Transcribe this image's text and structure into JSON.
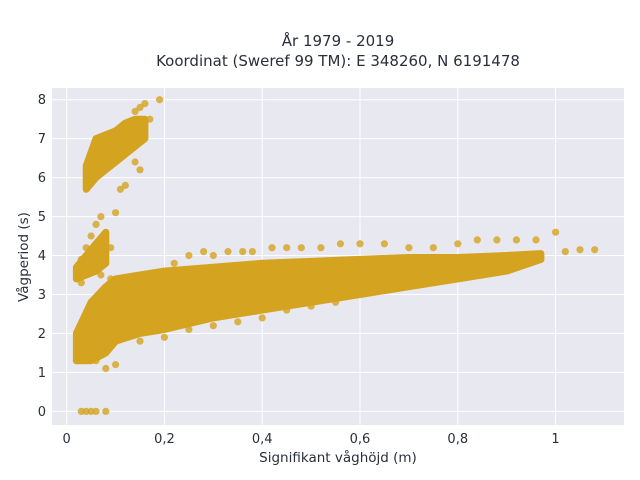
{
  "chart_data": {
    "type": "scatter",
    "title_lines": [
      "År 1979 - 2019",
      "Koordinat (Sweref 99 TM): E 348260, N 6191478"
    ],
    "xlabel": "Signifikant våghöjd (m)",
    "ylabel": "Vågperiod (s)",
    "xlim": [
      -0.03,
      1.14
    ],
    "ylim": [
      -0.35,
      8.3
    ],
    "x_ticks": [
      0,
      0.2,
      0.4,
      0.6,
      0.8,
      1
    ],
    "x_tick_labels": [
      "0",
      "0,2",
      "0,4",
      "0,6",
      "0,8",
      "1"
    ],
    "y_ticks": [
      0,
      1,
      2,
      3,
      4,
      5,
      6,
      7,
      8
    ],
    "y_tick_labels": [
      "0",
      "1",
      "2",
      "3",
      "4",
      "5",
      "6",
      "7",
      "8"
    ],
    "grid": true,
    "legend": "none",
    "colors": {
      "marker": "#d4a31f",
      "plot_bg": "#e8e8f0",
      "grid": "#ffffff"
    },
    "points": [
      [
        0.03,
        0
      ],
      [
        0.04,
        0
      ],
      [
        0.05,
        0
      ],
      [
        0.06,
        0
      ],
      [
        0.08,
        0
      ],
      [
        0.02,
        1.3
      ],
      [
        0.02,
        1.6
      ],
      [
        0.03,
        1.9
      ],
      [
        0.03,
        3.3
      ],
      [
        0.02,
        3.6
      ],
      [
        0.03,
        3.9
      ],
      [
        0.04,
        4.2
      ],
      [
        0.05,
        4.5
      ],
      [
        0.06,
        4.8
      ],
      [
        0.07,
        5.0
      ],
      [
        0.08,
        4.4
      ],
      [
        0.09,
        4.2
      ],
      [
        0.1,
        5.1
      ],
      [
        0.11,
        5.7
      ],
      [
        0.12,
        5.8
      ],
      [
        0.14,
        6.4
      ],
      [
        0.15,
        6.2
      ],
      [
        0.12,
        6.8
      ],
      [
        0.13,
        7.2
      ],
      [
        0.14,
        7.7
      ],
      [
        0.15,
        7.8
      ],
      [
        0.16,
        7.9
      ],
      [
        0.17,
        7.5
      ],
      [
        0.19,
        8.0
      ],
      [
        0.18,
        2.1
      ],
      [
        0.2,
        3.6
      ],
      [
        0.22,
        3.8
      ],
      [
        0.25,
        4.0
      ],
      [
        0.28,
        4.1
      ],
      [
        0.3,
        4.0
      ],
      [
        0.33,
        4.1
      ],
      [
        0.36,
        4.1
      ],
      [
        0.38,
        4.1
      ],
      [
        0.42,
        4.2
      ],
      [
        0.45,
        4.2
      ],
      [
        0.48,
        4.2
      ],
      [
        0.52,
        4.2
      ],
      [
        0.56,
        4.3
      ],
      [
        0.6,
        4.3
      ],
      [
        0.65,
        4.3
      ],
      [
        0.7,
        4.2
      ],
      [
        0.75,
        4.2
      ],
      [
        0.8,
        4.3
      ],
      [
        0.84,
        4.4
      ],
      [
        0.88,
        4.4
      ],
      [
        0.92,
        4.4
      ],
      [
        0.96,
        4.4
      ],
      [
        1.0,
        4.6
      ],
      [
        1.02,
        4.1
      ],
      [
        1.05,
        4.15
      ],
      [
        1.08,
        4.15
      ],
      [
        0.96,
        4.0
      ],
      [
        0.92,
        3.9
      ],
      [
        0.9,
        3.8
      ],
      [
        0.85,
        3.7
      ],
      [
        0.8,
        3.6
      ],
      [
        0.75,
        3.5
      ],
      [
        0.7,
        3.4
      ],
      [
        0.65,
        3.2
      ],
      [
        0.6,
        3.0
      ],
      [
        0.55,
        2.8
      ],
      [
        0.5,
        2.7
      ],
      [
        0.45,
        2.6
      ],
      [
        0.4,
        2.4
      ],
      [
        0.35,
        2.3
      ],
      [
        0.3,
        2.2
      ],
      [
        0.25,
        2.1
      ],
      [
        0.2,
        1.9
      ],
      [
        0.15,
        1.8
      ],
      [
        0.1,
        1.2
      ],
      [
        0.08,
        1.1
      ],
      [
        0.06,
        1.3
      ],
      [
        0.07,
        3.5
      ],
      [
        0.09,
        3.4
      ],
      [
        0.11,
        3.3
      ],
      [
        0.13,
        3.0
      ],
      [
        0.16,
        3.2
      ]
    ],
    "bands": [
      {
        "name": "main-band",
        "x": [
          0.02,
          0.05,
          0.08,
          0.1,
          0.15,
          0.2,
          0.3,
          0.4,
          0.5,
          0.6,
          0.7,
          0.8,
          0.9,
          0.97
        ],
        "lo": [
          1.3,
          1.3,
          1.5,
          1.8,
          2.0,
          2.1,
          2.4,
          2.6,
          2.8,
          3.0,
          3.2,
          3.4,
          3.6,
          3.9
        ],
        "hi": [
          2.0,
          2.8,
          3.2,
          3.4,
          3.5,
          3.6,
          3.7,
          3.8,
          3.85,
          3.9,
          3.95,
          3.95,
          4.0,
          4.05
        ]
      },
      {
        "name": "upper-band",
        "x": [
          0.04,
          0.06,
          0.08,
          0.1,
          0.12,
          0.14,
          0.16
        ],
        "lo": [
          5.7,
          6.0,
          6.2,
          6.4,
          6.6,
          6.8,
          7.0
        ],
        "hi": [
          6.3,
          7.0,
          7.1,
          7.2,
          7.4,
          7.5,
          7.5
        ]
      },
      {
        "name": "lower-left-band",
        "x": [
          0.02,
          0.04,
          0.06,
          0.08
        ],
        "lo": [
          3.4,
          3.5,
          3.6,
          3.8
        ],
        "hi": [
          3.7,
          4.0,
          4.3,
          4.6
        ]
      }
    ]
  }
}
